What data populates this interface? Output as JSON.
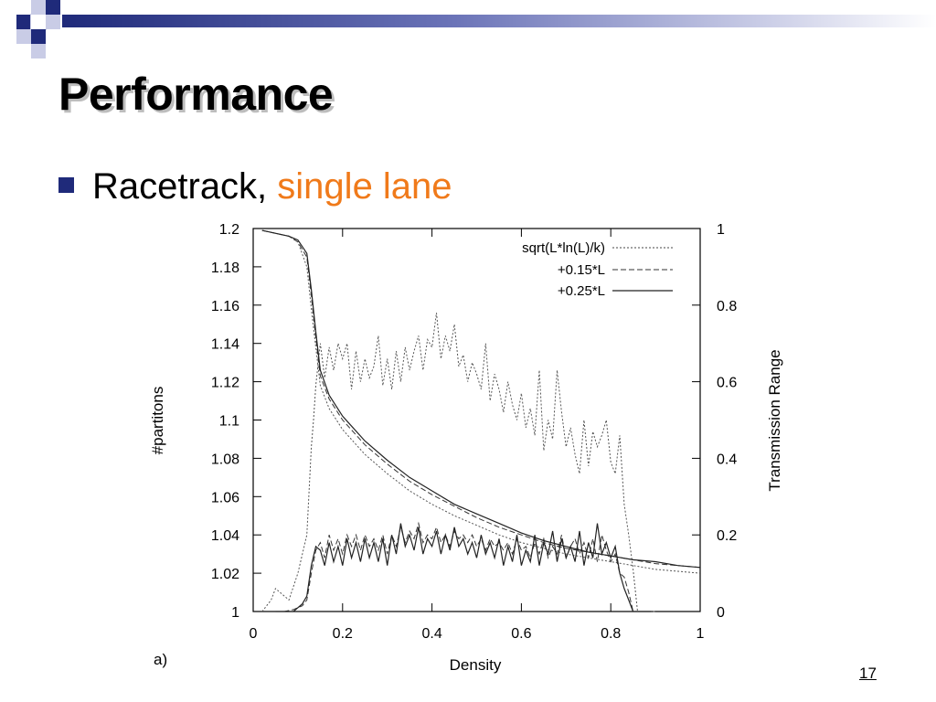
{
  "slide": {
    "title": "Performance",
    "bullet_text": "Racetrack,",
    "bullet_highlight": "single lane",
    "page_number": "17",
    "accent_color": "#f07a1a",
    "bullet_color": "#1f2a7a"
  },
  "chart_data": {
    "type": "line",
    "panel_label": "a)",
    "xlabel": "Density",
    "ylabel_left": "#partitons",
    "ylabel_right": "Transmission Range",
    "xlim": [
      0,
      1
    ],
    "ylim_left": [
      1,
      1.2
    ],
    "ylim_right": [
      0,
      1
    ],
    "x_ticks": [
      "0",
      "0.2",
      "0.4",
      "0.6",
      "0.8",
      "1"
    ],
    "y_left_ticks": [
      "1",
      "1.02",
      "1.04",
      "1.06",
      "1.08",
      "1.1",
      "1.12",
      "1.14",
      "1.16",
      "1.18",
      "1.2"
    ],
    "y_right_ticks": [
      "0",
      "0.2",
      "0.4",
      "0.6",
      "0.8",
      "1"
    ],
    "legend_position": "top-right",
    "grid": false,
    "series": [
      {
        "name": "sqrt(L*ln(L)/k)",
        "style": "dotted",
        "partitions": {
          "x": [
            0.02,
            0.04,
            0.06,
            0.08,
            0.1,
            0.12,
            0.13,
            0.14,
            0.15,
            0.17,
            0.2,
            0.25,
            0.3,
            0.35,
            0.4,
            0.45,
            0.5,
            0.55,
            0.6,
            0.65,
            0.7,
            0.75,
            0.8,
            0.85,
            0.9,
            0.95,
            1.0
          ],
          "y": [
            1.199,
            1.198,
            1.197,
            1.196,
            1.193,
            1.18,
            1.158,
            1.138,
            1.118,
            1.106,
            1.095,
            1.082,
            1.072,
            1.063,
            1.056,
            1.05,
            1.045,
            1.04,
            1.036,
            1.033,
            1.03,
            1.028,
            1.026,
            1.024,
            1.022,
            1.021,
            1.02
          ]
        },
        "range": {
          "x": [
            0.02,
            0.04,
            0.05,
            0.06,
            0.08,
            0.1,
            0.12,
            0.13,
            0.135,
            0.14,
            0.15,
            0.16,
            0.17,
            0.18,
            0.19,
            0.2,
            0.21,
            0.22,
            0.23,
            0.24,
            0.25,
            0.26,
            0.27,
            0.28,
            0.29,
            0.3,
            0.31,
            0.32,
            0.33,
            0.34,
            0.35,
            0.36,
            0.37,
            0.38,
            0.39,
            0.4,
            0.41,
            0.42,
            0.43,
            0.44,
            0.45,
            0.46,
            0.47,
            0.48,
            0.49,
            0.5,
            0.51,
            0.52,
            0.53,
            0.54,
            0.55,
            0.56,
            0.57,
            0.58,
            0.59,
            0.6,
            0.61,
            0.62,
            0.63,
            0.64,
            0.65,
            0.66,
            0.67,
            0.68,
            0.69,
            0.7,
            0.71,
            0.72,
            0.73,
            0.74,
            0.75,
            0.76,
            0.77,
            0.78,
            0.79,
            0.8,
            0.81,
            0.82,
            0.83,
            0.84,
            0.85,
            0.86,
            0.87,
            0.88,
            0.89,
            0.9
          ],
          "y": [
            0.0,
            0.03,
            0.06,
            0.05,
            0.03,
            0.1,
            0.2,
            0.43,
            0.5,
            0.59,
            0.7,
            0.61,
            0.69,
            0.63,
            0.7,
            0.66,
            0.7,
            0.58,
            0.68,
            0.6,
            0.66,
            0.61,
            0.64,
            0.72,
            0.59,
            0.66,
            0.58,
            0.68,
            0.6,
            0.69,
            0.63,
            0.68,
            0.72,
            0.63,
            0.71,
            0.69,
            0.78,
            0.66,
            0.72,
            0.68,
            0.75,
            0.64,
            0.67,
            0.6,
            0.65,
            0.62,
            0.58,
            0.7,
            0.55,
            0.62,
            0.58,
            0.52,
            0.6,
            0.54,
            0.5,
            0.57,
            0.48,
            0.53,
            0.46,
            0.63,
            0.42,
            0.5,
            0.45,
            0.63,
            0.52,
            0.43,
            0.48,
            0.41,
            0.36,
            0.5,
            0.38,
            0.47,
            0.43,
            0.46,
            0.5,
            0.39,
            0.36,
            0.46,
            0.28,
            0.2,
            0.11,
            0.0,
            0.0,
            0.0,
            0.0,
            0.0
          ]
        }
      },
      {
        "name": "+0.15*L",
        "style": "dashed",
        "partitions": {
          "x": [
            0.02,
            0.04,
            0.06,
            0.08,
            0.1,
            0.12,
            0.13,
            0.14,
            0.15,
            0.17,
            0.2,
            0.25,
            0.3,
            0.35,
            0.4,
            0.45,
            0.5,
            0.55,
            0.6,
            0.65,
            0.7,
            0.75,
            0.8,
            0.85,
            0.9,
            0.95,
            1.0
          ],
          "y": [
            1.199,
            1.198,
            1.197,
            1.196,
            1.193,
            1.185,
            1.165,
            1.143,
            1.123,
            1.111,
            1.1,
            1.087,
            1.077,
            1.068,
            1.061,
            1.055,
            1.049,
            1.044,
            1.04,
            1.036,
            1.033,
            1.031,
            1.029,
            1.027,
            1.025,
            1.024,
            1.023
          ]
        },
        "range": {
          "x": [
            0.05,
            0.07,
            0.09,
            0.1,
            0.11,
            0.12,
            0.13,
            0.14,
            0.15,
            0.16,
            0.17,
            0.18,
            0.19,
            0.2,
            0.21,
            0.22,
            0.23,
            0.24,
            0.25,
            0.26,
            0.27,
            0.28,
            0.29,
            0.3,
            0.31,
            0.32,
            0.33,
            0.34,
            0.35,
            0.36,
            0.37,
            0.38,
            0.39,
            0.4,
            0.41,
            0.42,
            0.43,
            0.44,
            0.45,
            0.46,
            0.47,
            0.48,
            0.49,
            0.5,
            0.51,
            0.52,
            0.53,
            0.54,
            0.55,
            0.56,
            0.57,
            0.58,
            0.59,
            0.6,
            0.61,
            0.62,
            0.63,
            0.64,
            0.65,
            0.66,
            0.67,
            0.68,
            0.69,
            0.7,
            0.71,
            0.72,
            0.73,
            0.74,
            0.75,
            0.76,
            0.77,
            0.78,
            0.79,
            0.8,
            0.81,
            0.82,
            0.83,
            0.84,
            0.85,
            0.86,
            0.87,
            0.88,
            0.89
          ],
          "y": [
            0.0,
            0.0,
            0.005,
            0.01,
            0.015,
            0.03,
            0.1,
            0.16,
            0.18,
            0.14,
            0.2,
            0.16,
            0.19,
            0.15,
            0.2,
            0.17,
            0.2,
            0.16,
            0.2,
            0.17,
            0.19,
            0.16,
            0.2,
            0.15,
            0.2,
            0.17,
            0.22,
            0.18,
            0.21,
            0.19,
            0.23,
            0.18,
            0.2,
            0.19,
            0.22,
            0.18,
            0.2,
            0.17,
            0.21,
            0.19,
            0.2,
            0.18,
            0.2,
            0.17,
            0.19,
            0.16,
            0.19,
            0.17,
            0.18,
            0.16,
            0.18,
            0.15,
            0.19,
            0.16,
            0.17,
            0.14,
            0.18,
            0.15,
            0.19,
            0.14,
            0.17,
            0.15,
            0.2,
            0.14,
            0.17,
            0.19,
            0.15,
            0.18,
            0.14,
            0.19,
            0.13,
            0.2,
            0.16,
            0.13,
            0.15,
            0.1,
            0.09,
            0.05,
            0.0,
            0.0,
            0.0,
            0.0,
            0.0
          ]
        }
      },
      {
        "name": "+0.25*L",
        "style": "solid",
        "partitions": {
          "x": [
            0.02,
            0.04,
            0.06,
            0.08,
            0.1,
            0.12,
            0.13,
            0.14,
            0.15,
            0.17,
            0.2,
            0.25,
            0.3,
            0.35,
            0.4,
            0.45,
            0.5,
            0.55,
            0.6,
            0.65,
            0.7,
            0.75,
            0.8,
            0.85,
            0.9,
            0.95,
            1.0
          ],
          "y": [
            1.199,
            1.198,
            1.197,
            1.196,
            1.194,
            1.187,
            1.168,
            1.146,
            1.126,
            1.113,
            1.102,
            1.089,
            1.079,
            1.07,
            1.063,
            1.056,
            1.051,
            1.046,
            1.041,
            1.037,
            1.034,
            1.031,
            1.029,
            1.027,
            1.026,
            1.024,
            1.023
          ]
        },
        "range": {
          "x": [
            0.05,
            0.07,
            0.09,
            0.1,
            0.11,
            0.12,
            0.13,
            0.14,
            0.15,
            0.16,
            0.17,
            0.18,
            0.19,
            0.2,
            0.21,
            0.22,
            0.23,
            0.24,
            0.25,
            0.26,
            0.27,
            0.28,
            0.29,
            0.3,
            0.31,
            0.32,
            0.33,
            0.34,
            0.35,
            0.36,
            0.37,
            0.38,
            0.39,
            0.4,
            0.41,
            0.42,
            0.43,
            0.44,
            0.45,
            0.46,
            0.47,
            0.48,
            0.49,
            0.5,
            0.51,
            0.52,
            0.53,
            0.54,
            0.55,
            0.56,
            0.57,
            0.58,
            0.59,
            0.6,
            0.61,
            0.62,
            0.63,
            0.64,
            0.65,
            0.66,
            0.67,
            0.68,
            0.69,
            0.7,
            0.71,
            0.72,
            0.73,
            0.74,
            0.75,
            0.76,
            0.77,
            0.78,
            0.79,
            0.8,
            0.81,
            0.82,
            0.83,
            0.84,
            0.85,
            0.86,
            0.87,
            0.88,
            0.89
          ],
          "y": [
            0.0,
            0.0,
            0.0,
            0.01,
            0.02,
            0.04,
            0.12,
            0.17,
            0.16,
            0.12,
            0.18,
            0.13,
            0.17,
            0.12,
            0.19,
            0.14,
            0.18,
            0.13,
            0.19,
            0.14,
            0.18,
            0.13,
            0.19,
            0.12,
            0.2,
            0.15,
            0.23,
            0.17,
            0.2,
            0.16,
            0.22,
            0.15,
            0.19,
            0.17,
            0.21,
            0.15,
            0.2,
            0.16,
            0.22,
            0.17,
            0.19,
            0.15,
            0.18,
            0.14,
            0.2,
            0.15,
            0.18,
            0.14,
            0.19,
            0.12,
            0.17,
            0.13,
            0.2,
            0.12,
            0.16,
            0.13,
            0.2,
            0.12,
            0.18,
            0.15,
            0.21,
            0.13,
            0.19,
            0.14,
            0.17,
            0.13,
            0.21,
            0.12,
            0.18,
            0.14,
            0.23,
            0.15,
            0.18,
            0.14,
            0.17,
            0.1,
            0.06,
            0.03,
            0.0,
            0.0,
            0.0,
            0.0,
            0.0
          ]
        }
      }
    ]
  }
}
